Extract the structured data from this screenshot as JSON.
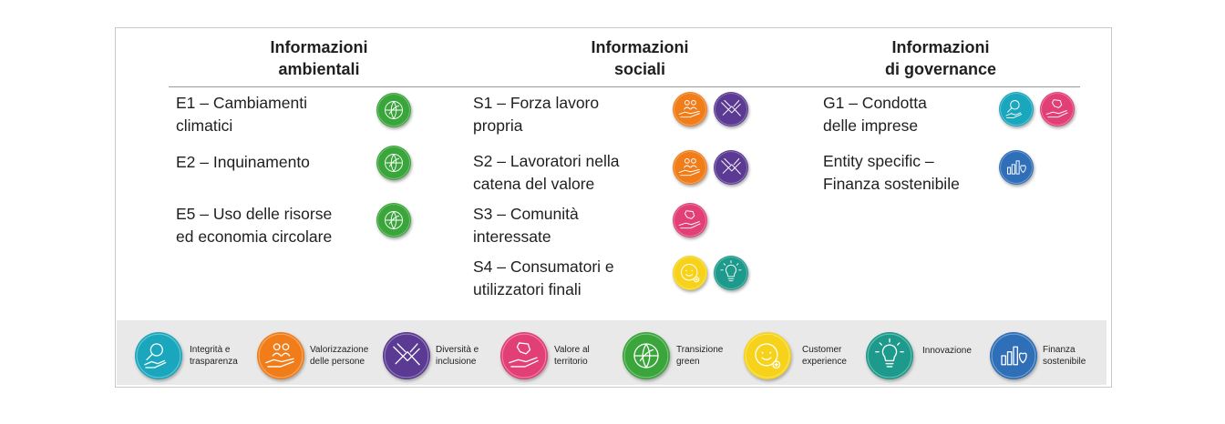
{
  "columns": {
    "env": {
      "title_l1": "Informazioni",
      "title_l2": "ambientali"
    },
    "soc": {
      "title_l1": "Informazioni",
      "title_l2": "sociali"
    },
    "gov": {
      "title_l1": "Informazioni",
      "title_l2": "di governance"
    }
  },
  "env_items": [
    {
      "l1": "E1 – Cambiamenti",
      "l2": "climatici",
      "icons": [
        "transizione-green"
      ]
    },
    {
      "l1": "E2 – Inquinamento",
      "l2": "",
      "icons": [
        "transizione-green"
      ]
    },
    {
      "l1": "E5 – Uso delle risorse",
      "l2": "ed economia circolare",
      "icons": [
        "transizione-green"
      ]
    }
  ],
  "soc_items": [
    {
      "l1": "S1 – Forza lavoro",
      "l2": "propria",
      "icons": [
        "valorizzazione-persone",
        "diversita-inclusione"
      ]
    },
    {
      "l1": "S2 – Lavoratori nella",
      "l2": "catena del valore",
      "icons": [
        "valorizzazione-persone",
        "diversita-inclusione"
      ]
    },
    {
      "l1": "S3 – Comunità",
      "l2": "interessate",
      "icons": [
        "valore-territorio"
      ]
    },
    {
      "l1": "S4 – Consumatori e",
      "l2": "utilizzatori finali",
      "icons": [
        "customer-experience",
        "innovazione"
      ]
    }
  ],
  "gov_items": [
    {
      "l1": "G1 – Condotta",
      "l2": "delle imprese",
      "icons": [
        "integrita-trasparenza",
        "valore-territorio"
      ]
    },
    {
      "l1": "Entity specific –",
      "l2": "Finanza sostenibile",
      "icons": [
        "finanza-sostenibile"
      ]
    }
  ],
  "legend": [
    {
      "icon": "integrita-trasparenza",
      "color": "#1aa7bd",
      "l1": "Integrità e",
      "l2": "trasparenza"
    },
    {
      "icon": "valorizzazione-persone",
      "color": "#f07d1a",
      "l1": "Valorizzazione",
      "l2": "delle persone"
    },
    {
      "icon": "diversita-inclusione",
      "color": "#5a3a93",
      "l1": "Diversità e",
      "l2": "inclusione"
    },
    {
      "icon": "valore-territorio",
      "color": "#e23f77",
      "l1": "Valore al",
      "l2": "territorio"
    },
    {
      "icon": "transizione-green",
      "color": "#3aa53a",
      "l1": "Transizione",
      "l2": "green"
    },
    {
      "icon": "customer-experience",
      "color": "#f6d31a",
      "l1": "Customer",
      "l2": "experience"
    },
    {
      "icon": "innovazione",
      "color": "#1e9a8c",
      "l1": "Innovazione",
      "l2": ""
    },
    {
      "icon": "finanza-sostenibile",
      "color": "#2f6fb8",
      "l1": "Finanza",
      "l2": "sostenibile"
    }
  ]
}
